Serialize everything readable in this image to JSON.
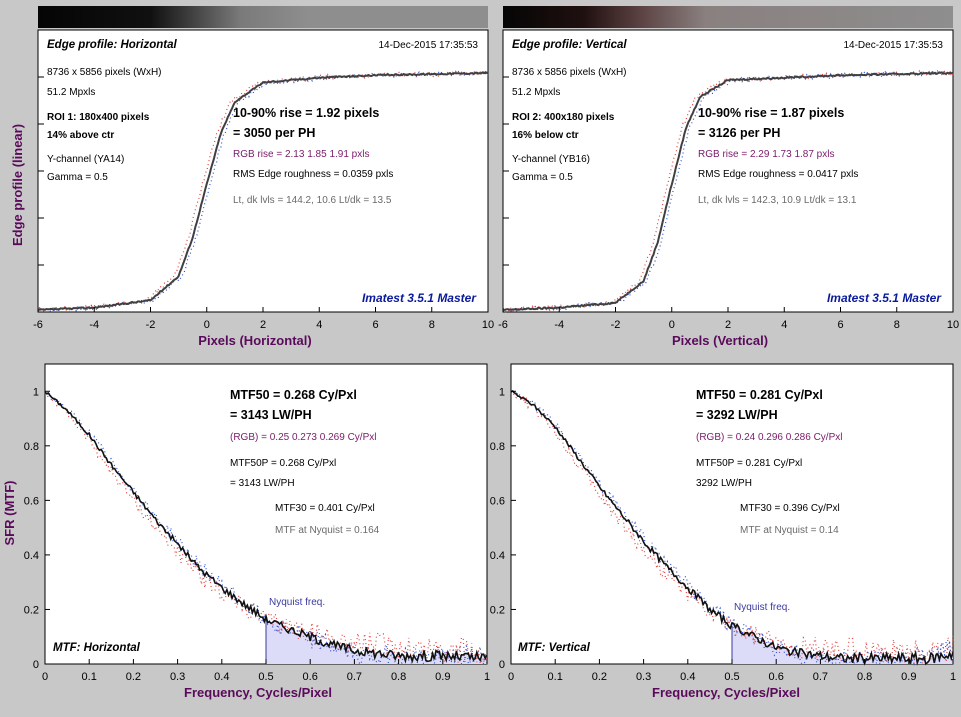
{
  "edge_panels": [
    {
      "title": "Edge profile: Horizontal",
      "date": "14-Dec-2015 17:35:53",
      "dims": "8736 x 5856 pixels (WxH)",
      "mpx": "51.2 Mpxls",
      "roi": "ROI 1:  180x400 pixels",
      "roi_pos": "14% above ctr",
      "channel": "Y-channel  (YA14)",
      "gamma": "Gamma = 0.5",
      "rise": "10-90% rise = 1.92 pixels",
      "per_ph": "= 3050 per PH",
      "rgb_rise": "RGB rise = 2.13  1.85  1.91 pxls",
      "rms": "RMS Edge roughness = 0.0359 pxls",
      "levels": "Lt, dk lvls = 144.2, 10.6   Lt/dk = 13.5",
      "brand": "Imatest 3.5.1 Master",
      "xlabel": "Pixels (Horizontal)"
    },
    {
      "title": "Edge profile: Vertical",
      "date": "14-Dec-2015 17:35:53",
      "dims": "8736 x 5856 pixels (WxH)",
      "mpx": "51.2 Mpxls",
      "roi": "ROI 2:  400x180 pixels",
      "roi_pos": "16% below ctr",
      "channel": "Y-channel  (YB16)",
      "gamma": "Gamma = 0.5",
      "rise": "10-90% rise = 1.87 pixels",
      "per_ph": "= 3126 per PH",
      "rgb_rise": "RGB rise = 2.29  1.73  1.87 pxls",
      "rms": "RMS Edge roughness = 0.0417 pxls",
      "levels": "Lt, dk lvls = 142.3, 10.9   Lt/dk = 13.1",
      "brand": "Imatest 3.5.1 Master",
      "xlabel": "Pixels (Vertical)"
    }
  ],
  "edge_ylabel": "Edge profile (linear)",
  "edge_xticks": [
    "-6",
    "-4",
    "-2",
    "0",
    "2",
    "4",
    "6",
    "8",
    "10"
  ],
  "mtf_panels": [
    {
      "title": "MTF: Horizontal",
      "mtf50": "MTF50 = 0.268 Cy/Pxl",
      "lwph": "= 3143 LW/PH",
      "rgb": "(RGB) = 0.25  0.273  0.269 Cy/Pxl",
      "mtf50p": "MTF50P = 0.268 Cy/Pxl",
      "lwph_p": "= 3143 LW/PH",
      "mtf30": "MTF30 = 0.401 Cy/Pxl",
      "nyq_val": "MTF at Nyquist = 0.164",
      "nyq_label": "Nyquist freq.",
      "xlabel": "Frequency, Cycles/Pixel"
    },
    {
      "title": "MTF: Vertical",
      "mtf50": "MTF50 = 0.281 Cy/Pxl",
      "lwph": "= 3292 LW/PH",
      "rgb": "(RGB) = 0.24  0.296  0.286 Cy/Pxl",
      "mtf50p": "MTF50P = 0.281 Cy/Pxl",
      "lwph_p": "3292 LW/PH",
      "mtf30": "MTF30 = 0.396 Cy/Pxl",
      "nyq_val": "MTF at Nyquist = 0.14",
      "nyq_label": "Nyquist freq.",
      "xlabel": "Frequency, Cycles/Pixel"
    }
  ],
  "mtf_ylabel": "SFR (MTF)",
  "mtf_xticks": [
    "0",
    "0.1",
    "0.2",
    "0.3",
    "0.4",
    "0.5",
    "0.6",
    "0.7",
    "0.8",
    "0.9",
    "1"
  ],
  "mtf_yticks": [
    "0",
    "0.2",
    "0.4",
    "0.6",
    "0.8",
    "1"
  ],
  "colors": {
    "axis_title": "#5a0a5a",
    "rgb_text": "#7a1a6a",
    "brand": "#0a1a9a",
    "nyquist_fill": "#dcdcf8",
    "curve": "#333333",
    "red_dots": "#e04040",
    "blue_dots": "#3050d0",
    "green_dots": "#30a030"
  },
  "chart_data": [
    {
      "type": "line",
      "title": "Edge profile: Horizontal",
      "xlabel": "Pixels (Horizontal)",
      "ylabel": "Edge profile (linear)",
      "xlim": [
        -6,
        10
      ],
      "ylim": [
        0,
        1
      ],
      "series": [
        {
          "x": [
            -6,
            -4,
            -2,
            -1,
            -0.5,
            0,
            0.5,
            1,
            2,
            4,
            6,
            8,
            10
          ],
          "values": [
            0.0,
            0.01,
            0.04,
            0.14,
            0.3,
            0.52,
            0.73,
            0.86,
            0.94,
            0.96,
            0.97,
            0.975,
            0.98
          ]
        }
      ]
    },
    {
      "type": "line",
      "title": "Edge profile: Vertical",
      "xlabel": "Pixels (Vertical)",
      "ylabel": "Edge profile (linear)",
      "xlim": [
        -6,
        10
      ],
      "ylim": [
        0,
        1
      ],
      "series": [
        {
          "x": [
            -6,
            -4,
            -2,
            -1,
            -0.5,
            0,
            0.5,
            1,
            2,
            4,
            6,
            8,
            10
          ],
          "values": [
            0.0,
            0.01,
            0.03,
            0.12,
            0.28,
            0.52,
            0.75,
            0.88,
            0.95,
            0.96,
            0.97,
            0.975,
            0.98
          ]
        }
      ]
    },
    {
      "type": "line",
      "title": "MTF: Horizontal",
      "xlabel": "Frequency, Cycles/Pixel",
      "ylabel": "SFR (MTF)",
      "xlim": [
        0,
        1
      ],
      "ylim": [
        0,
        1.1
      ],
      "series": [
        {
          "x": [
            0,
            0.05,
            0.1,
            0.15,
            0.2,
            0.25,
            0.3,
            0.35,
            0.4,
            0.45,
            0.5,
            0.55,
            0.6,
            0.65,
            0.7,
            0.75,
            0.8,
            0.85,
            0.9,
            0.95,
            1.0
          ],
          "values": [
            1.0,
            0.93,
            0.84,
            0.73,
            0.63,
            0.53,
            0.44,
            0.35,
            0.28,
            0.22,
            0.164,
            0.13,
            0.1,
            0.07,
            0.05,
            0.04,
            0.03,
            0.03,
            0.03,
            0.025,
            0.02
          ]
        }
      ]
    },
    {
      "type": "line",
      "title": "MTF: Vertical",
      "xlabel": "Frequency, Cycles/Pixel",
      "ylabel": "SFR (MTF)",
      "xlim": [
        0,
        1
      ],
      "ylim": [
        0,
        1.1
      ],
      "series": [
        {
          "x": [
            0,
            0.05,
            0.1,
            0.15,
            0.2,
            0.25,
            0.3,
            0.35,
            0.4,
            0.45,
            0.5,
            0.55,
            0.6,
            0.65,
            0.7,
            0.75,
            0.8,
            0.85,
            0.9,
            0.95,
            1.0
          ],
          "values": [
            1.0,
            0.95,
            0.87,
            0.76,
            0.65,
            0.55,
            0.45,
            0.36,
            0.28,
            0.2,
            0.14,
            0.1,
            0.06,
            0.04,
            0.03,
            0.02,
            0.02,
            0.02,
            0.02,
            0.02,
            0.04
          ]
        }
      ]
    }
  ]
}
